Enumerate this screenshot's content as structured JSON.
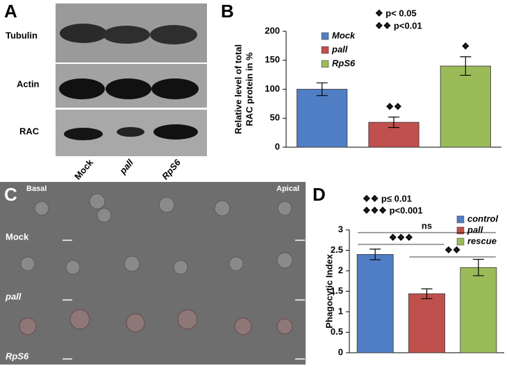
{
  "panel_labels": [
    "A",
    "B",
    "C",
    "D"
  ],
  "blot": {
    "rows": [
      "Tubulin",
      "Actin",
      "RAC"
    ],
    "lanes": [
      "Mock",
      "pall",
      "RpS6"
    ]
  },
  "micrographs": {
    "corner_labels": [
      "Basal",
      "Apical"
    ],
    "rows": [
      "Mock",
      "pall",
      "RpS6"
    ]
  },
  "chart_data": [
    {
      "type": "bar",
      "ylabel": [
        "Relative level of total",
        "RAC protein in %"
      ],
      "ylim": [
        0,
        200
      ],
      "yticks": [
        0,
        50,
        100,
        150,
        200
      ],
      "significance_legend": [
        "❖  p< 0.05",
        "❖❖  p<0.01"
      ],
      "series": [
        {
          "name": "Mock",
          "color": "#4f7ec4",
          "values": [
            100
          ],
          "errors": [
            11
          ],
          "mark": null
        },
        {
          "name": "pall",
          "color": "#c0504d",
          "values": [
            43
          ],
          "errors": [
            9
          ],
          "mark": "❖❖"
        },
        {
          "name": "RpS6",
          "color": "#9bbb59",
          "values": [
            140
          ],
          "errors": [
            16
          ],
          "mark": "❖"
        }
      ]
    },
    {
      "type": "bar",
      "ylabel": [
        "Phagocytic Index"
      ],
      "ylim": [
        0,
        3
      ],
      "yticks": [
        0,
        0.5,
        1,
        1.5,
        2,
        2.5,
        3
      ],
      "significance_legend": [
        "❖❖  p≤ 0.01",
        "❖❖❖ p<0.001"
      ],
      "comparison_labels": [
        "ns",
        "❖❖❖",
        "❖❖"
      ],
      "series": [
        {
          "name": "control",
          "color": "#4f7ec4",
          "values": [
            2.4
          ],
          "errors": [
            0.13
          ],
          "mark": null
        },
        {
          "name": "pall",
          "color": "#c0504d",
          "values": [
            1.44
          ],
          "errors": [
            0.12
          ],
          "mark": null
        },
        {
          "name": "rescue",
          "color": "#9bbb59",
          "values": [
            2.08
          ],
          "errors": [
            0.2
          ],
          "mark": null
        }
      ]
    }
  ]
}
